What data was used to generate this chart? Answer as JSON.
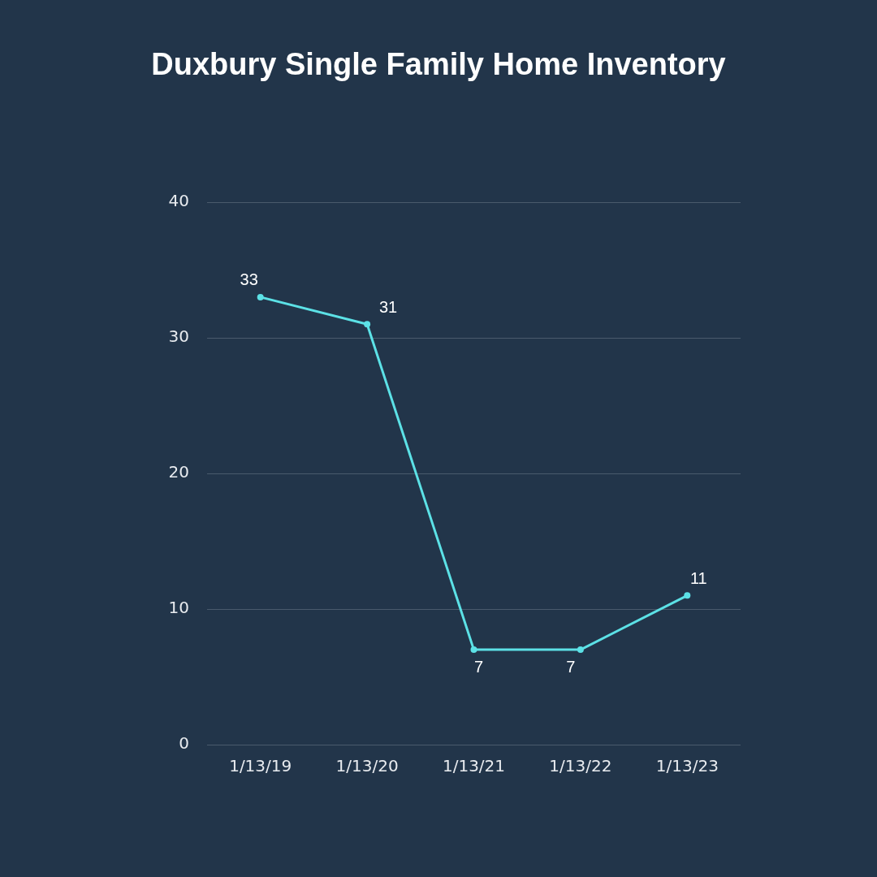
{
  "chart_data": {
    "type": "line",
    "title": "Duxbury Single Family Home Inventory",
    "categories": [
      "1/13/19",
      "1/13/20",
      "1/13/21",
      "1/13/22",
      "1/13/23"
    ],
    "series": [
      {
        "color": "#5ce1e6",
        "values": [
          33,
          31,
          7,
          7,
          11
        ]
      }
    ],
    "ylim": [
      0,
      40
    ],
    "yticks": [
      0,
      10,
      20,
      30,
      40
    ],
    "grid": "y",
    "legend": false,
    "marker": "circle",
    "line_style": "solid",
    "data_labels": true
  }
}
